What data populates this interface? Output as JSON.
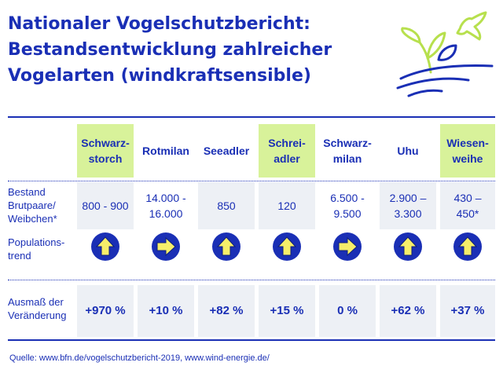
{
  "title": {
    "line1": "Nationaler Vogelschutzbericht:",
    "line2": "Bestandsentwicklung zahlreicher",
    "line3": "Vogelarten (windkraftsensible)"
  },
  "colors": {
    "accent": "#1a2fb5",
    "highlight": "#d8f29a",
    "shade": "#edf0f5",
    "arrow_fill": "#f6ee6a",
    "logo_green": "#b7e04d"
  },
  "row_labels": {
    "bestand": "Bestand\nBrutpaare/\nWeibchen*",
    "trend": "Populations-\ntrend",
    "veraenderung": "Ausmaß der\nVeränderung"
  },
  "chart_data": {
    "type": "table",
    "species": [
      {
        "name": "Schwarz-\nstorch",
        "bestand": "800 - 900",
        "trend": "up",
        "change": "+970 %",
        "change_value": 970
      },
      {
        "name": "Rotmilan",
        "bestand": "14.000 -\n16.000",
        "trend": "right",
        "change": "+10 %",
        "change_value": 10
      },
      {
        "name": "Seeadler",
        "bestand": "850",
        "trend": "up",
        "change": "+82 %",
        "change_value": 82
      },
      {
        "name": "Schrei-\nadler",
        "bestand": "120",
        "trend": "up",
        "change": "+15 %",
        "change_value": 15
      },
      {
        "name": "Schwarz-\nmilan",
        "bestand": "6.500 -\n9.500",
        "trend": "right",
        "change": "0 %",
        "change_value": 0
      },
      {
        "name": "Uhu",
        "bestand": "2.900 –\n3.300",
        "trend": "up",
        "change": "+62 %",
        "change_value": 62
      },
      {
        "name": "Wiesen-\nweihe",
        "bestand": "430 –\n450*",
        "trend": "up",
        "change": "+37 %",
        "change_value": 37
      }
    ]
  },
  "source": "Quelle: www.bfn.de/vogelschutzbericht-2019, www.wind-energie.de/",
  "icons": {
    "logo": "bird-plant-landscape-icon",
    "trend_up": "arrow-up-icon",
    "trend_right": "arrow-right-icon"
  }
}
